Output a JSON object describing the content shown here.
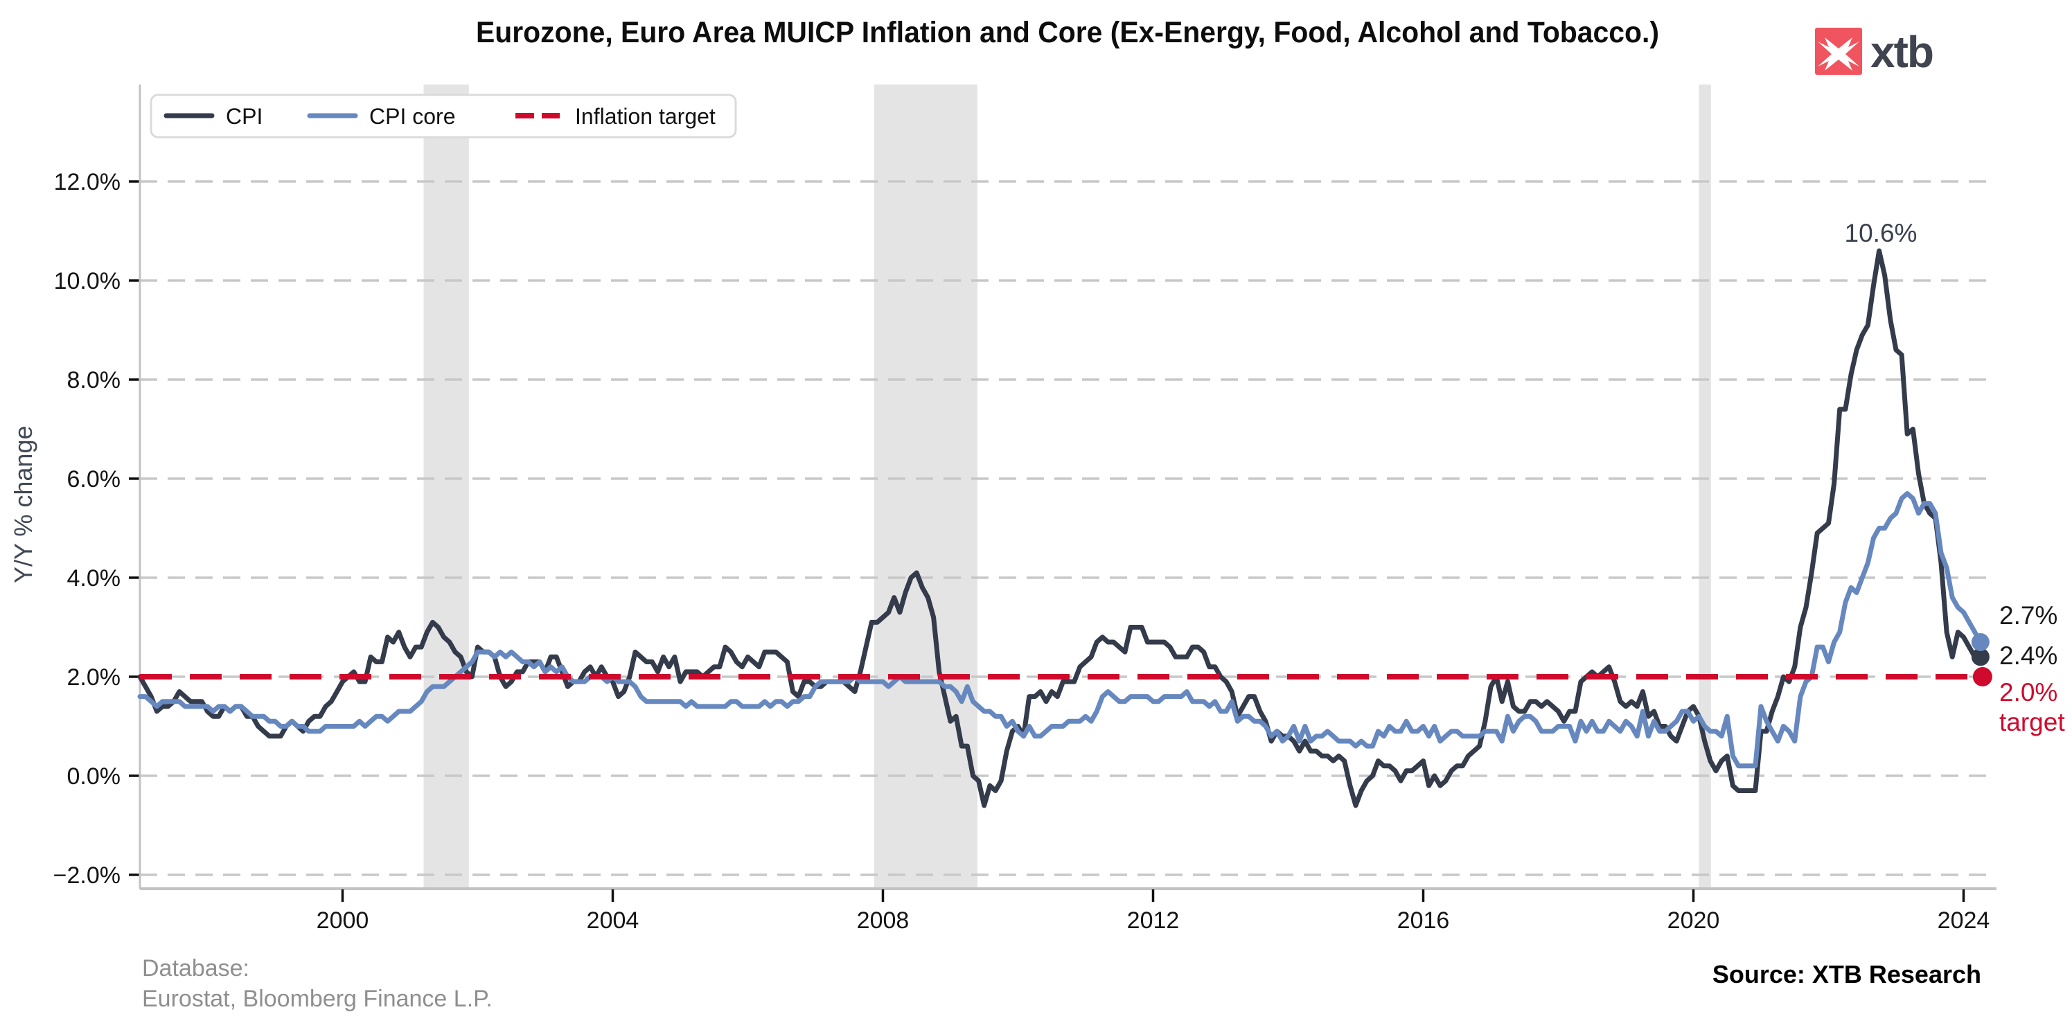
{
  "title": "Eurozone, Euro Area MUICP Inflation and Core (Ex-Energy, Food, Alcohol and Tobacco.)",
  "logo": {
    "text": "xtb",
    "square_color": "#f0545e",
    "icon": "xtb-bird-icon"
  },
  "legend": {
    "cpi_label": "CPI",
    "core_label": "CPI core",
    "target_label": "Inflation target"
  },
  "y_axis": {
    "label": "Y/Y % change",
    "ticks": [
      "12.0%",
      "10.0%",
      "8.0%",
      "6.0%",
      "4.0%",
      "2.0%",
      "0.0%",
      "−2.0%"
    ],
    "tick_values": [
      12,
      10,
      8,
      6,
      4,
      2,
      0,
      -2
    ]
  },
  "x_axis": {
    "ticks": [
      "2000",
      "2004",
      "2008",
      "2012",
      "2016",
      "2020",
      "2024"
    ],
    "tick_years": [
      2000,
      2004,
      2008,
      2012,
      2016,
      2020,
      2024
    ]
  },
  "annotations": {
    "peak": "10.6%",
    "core_end": "2.7%",
    "cpi_end": "2.4%",
    "target_value": "2.0%",
    "target_word": "target"
  },
  "footer": {
    "database_label": "Database:",
    "database_sources": "Eurostat, Bloomberg Finance L.P.",
    "source": "Source: XTB Research"
  },
  "colors": {
    "cpi": "#343b4b",
    "core": "#6688bf",
    "target": "#cf0a2c",
    "grid": "#c8c8c8",
    "axis": "#c3c3c3",
    "band": "#e4e4e4",
    "tick": "#111111"
  },
  "chart_data": {
    "type": "line",
    "title": "Eurozone, Euro Area MUICP Inflation and Core (Ex-Energy, Food, Alcohol and Tobacco.)",
    "xlabel": "",
    "ylabel": "Y/Y % change",
    "xlim": [
      1997.0,
      2024.5
    ],
    "ylim": [
      -2.3,
      14.0
    ],
    "grid": true,
    "legend_position": "top-left",
    "x_start": 1997.0,
    "x_interval_years": 0.0833333,
    "target_value": 2.0,
    "recession_bands": [
      [
        2001.2,
        2001.87
      ],
      [
        2007.87,
        2009.4
      ],
      [
        2020.08,
        2020.26
      ]
    ],
    "series": [
      {
        "name": "CPI",
        "end_label": "2.4%",
        "values": [
          2.0,
          1.8,
          1.6,
          1.3,
          1.4,
          1.4,
          1.5,
          1.7,
          1.6,
          1.5,
          1.5,
          1.5,
          1.3,
          1.2,
          1.2,
          1.4,
          1.3,
          1.4,
          1.4,
          1.2,
          1.2,
          1.0,
          0.9,
          0.8,
          0.8,
          0.8,
          1.0,
          1.1,
          1.0,
          0.9,
          1.1,
          1.2,
          1.2,
          1.4,
          1.5,
          1.7,
          1.9,
          2.0,
          2.1,
          1.9,
          1.9,
          2.4,
          2.3,
          2.3,
          2.8,
          2.7,
          2.9,
          2.6,
          2.4,
          2.6,
          2.6,
          2.9,
          3.1,
          3.0,
          2.8,
          2.7,
          2.5,
          2.4,
          2.1,
          2.0,
          2.6,
          2.5,
          2.5,
          2.4,
          2.0,
          1.8,
          1.9,
          2.1,
          2.1,
          2.3,
          2.3,
          2.3,
          2.1,
          2.4,
          2.4,
          2.1,
          1.8,
          1.9,
          1.9,
          2.1,
          2.2,
          2.0,
          2.2,
          2.0,
          1.9,
          1.6,
          1.7,
          2.0,
          2.5,
          2.4,
          2.3,
          2.3,
          2.1,
          2.4,
          2.2,
          2.4,
          1.9,
          2.1,
          2.1,
          2.1,
          2.0,
          2.1,
          2.2,
          2.2,
          2.6,
          2.5,
          2.3,
          2.2,
          2.4,
          2.3,
          2.2,
          2.5,
          2.5,
          2.5,
          2.4,
          2.3,
          1.7,
          1.6,
          1.9,
          1.9,
          1.8,
          1.8,
          1.9,
          1.9,
          1.9,
          1.9,
          1.8,
          1.7,
          2.1,
          2.6,
          3.1,
          3.1,
          3.2,
          3.3,
          3.6,
          3.3,
          3.7,
          4.0,
          4.1,
          3.8,
          3.6,
          3.2,
          2.1,
          1.6,
          1.1,
          1.2,
          0.6,
          0.6,
          0.0,
          -0.1,
          -0.6,
          -0.2,
          -0.3,
          -0.1,
          0.5,
          0.9,
          1.0,
          0.8,
          1.6,
          1.6,
          1.7,
          1.5,
          1.7,
          1.6,
          1.9,
          1.9,
          1.9,
          2.2,
          2.3,
          2.4,
          2.7,
          2.8,
          2.7,
          2.7,
          2.6,
          2.5,
          3.0,
          3.0,
          3.0,
          2.7,
          2.7,
          2.7,
          2.7,
          2.6,
          2.4,
          2.4,
          2.4,
          2.6,
          2.6,
          2.5,
          2.2,
          2.2,
          2.0,
          1.9,
          1.7,
          1.2,
          1.4,
          1.6,
          1.6,
          1.3,
          1.1,
          0.7,
          0.9,
          0.8,
          0.8,
          0.7,
          0.5,
          0.7,
          0.5,
          0.5,
          0.4,
          0.4,
          0.3,
          0.4,
          0.3,
          -0.2,
          -0.6,
          -0.3,
          -0.1,
          0.0,
          0.3,
          0.2,
          0.2,
          0.1,
          -0.1,
          0.1,
          0.1,
          0.2,
          0.3,
          -0.2,
          0.0,
          -0.2,
          -0.1,
          0.1,
          0.2,
          0.2,
          0.4,
          0.5,
          0.6,
          1.1,
          1.8,
          2.0,
          1.5,
          1.9,
          1.4,
          1.3,
          1.3,
          1.5,
          1.5,
          1.4,
          1.5,
          1.4,
          1.3,
          1.1,
          1.3,
          1.3,
          1.9,
          2.0,
          2.1,
          2.0,
          2.1,
          2.2,
          1.9,
          1.5,
          1.4,
          1.5,
          1.4,
          1.7,
          1.2,
          1.3,
          1.0,
          1.0,
          0.8,
          0.7,
          1.0,
          1.3,
          1.4,
          1.2,
          0.7,
          0.3,
          0.1,
          0.3,
          0.4,
          -0.2,
          -0.3,
          -0.3,
          -0.3,
          -0.3,
          0.9,
          0.9,
          1.3,
          1.6,
          2.0,
          1.9,
          2.2,
          3.0,
          3.4,
          4.1,
          4.9,
          5.0,
          5.1,
          5.9,
          7.4,
          7.4,
          8.1,
          8.6,
          8.9,
          9.1,
          9.9,
          10.6,
          10.1,
          9.2,
          8.6,
          8.5,
          6.9,
          7.0,
          6.1,
          5.5,
          5.3,
          5.2,
          4.3,
          2.9,
          2.4,
          2.9,
          2.8,
          2.6,
          2.4,
          2.4
        ]
      },
      {
        "name": "CPI core",
        "end_label": "2.7%",
        "values": [
          1.6,
          1.6,
          1.5,
          1.4,
          1.5,
          1.5,
          1.5,
          1.5,
          1.4,
          1.4,
          1.4,
          1.4,
          1.4,
          1.3,
          1.4,
          1.4,
          1.3,
          1.4,
          1.4,
          1.3,
          1.2,
          1.2,
          1.2,
          1.1,
          1.1,
          1.0,
          1.0,
          1.1,
          1.0,
          1.0,
          0.9,
          0.9,
          0.9,
          1.0,
          1.0,
          1.0,
          1.0,
          1.0,
          1.0,
          1.1,
          1.0,
          1.1,
          1.2,
          1.2,
          1.1,
          1.2,
          1.3,
          1.3,
          1.3,
          1.4,
          1.5,
          1.7,
          1.8,
          1.8,
          1.8,
          1.9,
          2.0,
          2.1,
          2.2,
          2.3,
          2.5,
          2.5,
          2.5,
          2.4,
          2.5,
          2.4,
          2.5,
          2.4,
          2.3,
          2.3,
          2.2,
          2.3,
          2.1,
          2.2,
          2.1,
          2.2,
          2.0,
          1.9,
          1.9,
          1.9,
          2.0,
          2.0,
          2.0,
          1.9,
          2.0,
          1.9,
          1.9,
          1.9,
          1.8,
          1.6,
          1.5,
          1.5,
          1.5,
          1.5,
          1.5,
          1.5,
          1.5,
          1.4,
          1.5,
          1.4,
          1.4,
          1.4,
          1.4,
          1.4,
          1.4,
          1.5,
          1.5,
          1.4,
          1.4,
          1.4,
          1.4,
          1.5,
          1.4,
          1.5,
          1.5,
          1.4,
          1.5,
          1.5,
          1.6,
          1.6,
          1.8,
          1.9,
          1.9,
          1.9,
          1.9,
          1.9,
          1.9,
          2.0,
          1.9,
          1.9,
          1.9,
          1.9,
          1.9,
          1.8,
          1.9,
          2.0,
          1.9,
          1.9,
          1.9,
          1.9,
          1.9,
          1.9,
          1.9,
          1.8,
          1.8,
          1.7,
          1.5,
          1.8,
          1.5,
          1.4,
          1.3,
          1.3,
          1.2,
          1.2,
          1.0,
          1.1,
          0.9,
          0.8,
          1.0,
          0.8,
          0.8,
          0.9,
          1.0,
          1.0,
          1.0,
          1.1,
          1.1,
          1.1,
          1.2,
          1.1,
          1.3,
          1.6,
          1.7,
          1.6,
          1.5,
          1.5,
          1.6,
          1.6,
          1.6,
          1.6,
          1.5,
          1.5,
          1.6,
          1.6,
          1.6,
          1.6,
          1.7,
          1.5,
          1.5,
          1.5,
          1.4,
          1.5,
          1.3,
          1.3,
          1.5,
          1.1,
          1.2,
          1.2,
          1.1,
          1.1,
          1.0,
          0.8,
          0.9,
          0.7,
          0.8,
          1.0,
          0.7,
          1.0,
          0.7,
          0.8,
          0.8,
          0.9,
          0.8,
          0.7,
          0.7,
          0.7,
          0.6,
          0.7,
          0.6,
          0.6,
          0.9,
          0.8,
          1.0,
          0.9,
          0.9,
          1.1,
          0.9,
          0.9,
          1.0,
          0.8,
          1.0,
          0.7,
          0.8,
          0.9,
          0.9,
          0.8,
          0.8,
          0.8,
          0.8,
          0.9,
          0.9,
          0.9,
          0.7,
          1.2,
          0.9,
          1.1,
          1.2,
          1.2,
          1.1,
          0.9,
          0.9,
          0.9,
          1.0,
          1.0,
          1.0,
          0.7,
          1.1,
          0.9,
          1.1,
          0.9,
          0.9,
          1.1,
          1.0,
          0.9,
          1.1,
          1.0,
          0.8,
          1.3,
          0.8,
          1.1,
          0.9,
          0.9,
          1.0,
          1.1,
          1.3,
          1.3,
          1.1,
          1.2,
          1.0,
          0.9,
          0.9,
          0.8,
          1.2,
          0.4,
          0.2,
          0.2,
          0.2,
          0.2,
          1.4,
          1.1,
          0.9,
          0.7,
          1.0,
          0.9,
          0.7,
          1.6,
          1.9,
          2.0,
          2.6,
          2.6,
          2.3,
          2.7,
          2.9,
          3.5,
          3.8,
          3.7,
          4.0,
          4.3,
          4.8,
          5.0,
          5.0,
          5.2,
          5.3,
          5.6,
          5.7,
          5.6,
          5.3,
          5.5,
          5.5,
          5.3,
          4.5,
          4.2,
          3.6,
          3.4,
          3.3,
          3.1,
          2.9,
          2.7
        ]
      }
    ],
    "annotation_peak": {
      "label": "10.6%",
      "x": 2022.75,
      "y": 10.6
    }
  }
}
